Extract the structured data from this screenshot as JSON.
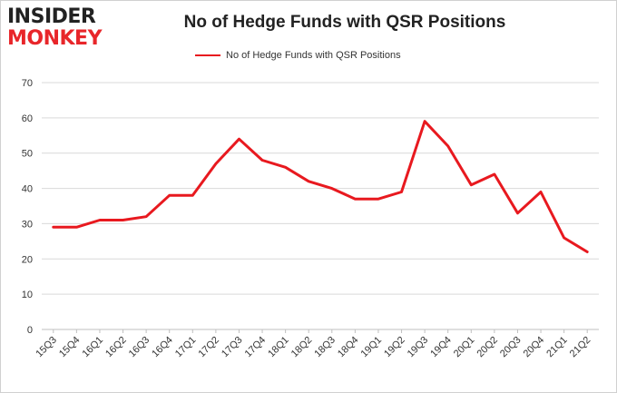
{
  "logo": {
    "top": "INSIDER",
    "bottom": "MONKEY"
  },
  "chart_data": {
    "type": "line",
    "title": "No of Hedge Funds with QSR Positions",
    "xlabel": "",
    "ylabel": "",
    "ylim": [
      0,
      70
    ],
    "yticks": [
      0,
      10,
      20,
      30,
      40,
      50,
      60,
      70
    ],
    "grid": true,
    "legend_position": "top-center",
    "categories": [
      "15Q3",
      "15Q4",
      "16Q1",
      "16Q2",
      "16Q3",
      "16Q4",
      "17Q1",
      "17Q2",
      "17Q3",
      "17Q4",
      "18Q1",
      "18Q2",
      "18Q3",
      "18Q4",
      "19Q1",
      "19Q2",
      "19Q3",
      "19Q4",
      "20Q1",
      "20Q2",
      "20Q3",
      "20Q4",
      "21Q1",
      "21Q2"
    ],
    "series": [
      {
        "name": "No of Hedge Funds with QSR Positions",
        "color": "#e8191f",
        "values": [
          29,
          29,
          31,
          31,
          32,
          38,
          38,
          47,
          54,
          48,
          46,
          42,
          40,
          37,
          37,
          39,
          59,
          52,
          41,
          44,
          33,
          39,
          26,
          22
        ]
      }
    ]
  }
}
